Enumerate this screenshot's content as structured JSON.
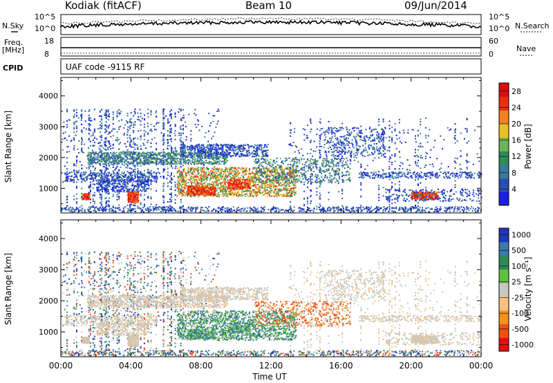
{
  "header": {
    "station": "Kodiak (fitACF)",
    "beam": "Beam 10",
    "date": "09/Jun/2014"
  },
  "panels": {
    "nsky": {
      "label": "N.Sky",
      "ticks": [
        "10^5",
        "10^0"
      ]
    },
    "nsearch": {
      "label": "N.Search",
      "ticks": [
        "10^5",
        "10^0"
      ]
    },
    "freq": {
      "label_line1": "Freq.",
      "label_line2": "[MHz]",
      "ticks": [
        "18",
        "8"
      ]
    },
    "nave": {
      "label": "Nave",
      "ticks": [
        "60",
        "0"
      ]
    },
    "cpid": {
      "label": "CPID",
      "text": "UAF code -9115 RF"
    }
  },
  "colors": {
    "power": [
      "#1a1ee0",
      "#2a4fb0",
      "#3a7a9a",
      "#2e8b57",
      "#6db35a",
      "#e8c020",
      "#f08020",
      "#e83010",
      "#d81010"
    ],
    "velocity": [
      "#e01010",
      "#f05010",
      "#f59020",
      "#f8c080",
      "#c8c8c0",
      "#60c040",
      "#2e8b57",
      "#3a7ab0",
      "#2038b8"
    ],
    "vel_palette_plot": [
      "#2e8b57",
      "#3c9a60",
      "#4aa860",
      "#c0c0b8",
      "#e0901a",
      "#f08a10",
      "#6db35a"
    ]
  },
  "chart_data": [
    {
      "type": "heatmap",
      "title": "Power",
      "xlabel": "Time UT",
      "ylabel": "Slant Range [km]",
      "x_ticks": [
        "00:00",
        "04:00",
        "08:00",
        "12:00",
        "16:00",
        "20:00",
        "00:00"
      ],
      "y_ticks": [
        "1000",
        "2000",
        "3000",
        "4000"
      ],
      "ylim": [
        200,
        4600
      ],
      "xlim_hours": [
        0,
        24
      ],
      "colorbar": {
        "label": "Power [dB]",
        "ticks": [
          "4",
          "8",
          "12",
          "16",
          "20",
          "24",
          "28"
        ],
        "range": [
          0,
          30
        ]
      },
      "regions": [
        {
          "t0": 2.0,
          "t1": 9.0,
          "r0": 1750,
          "r1": 2250,
          "level": "low-mid"
        },
        {
          "t0": 6.5,
          "t1": 11.5,
          "r0": 2000,
          "r1": 2500,
          "level": "low"
        },
        {
          "t0": 6.6,
          "t1": 13.5,
          "r0": 700,
          "r1": 1700,
          "level": "high"
        },
        {
          "t0": 1.2,
          "t1": 1.6,
          "r0": 650,
          "r1": 850,
          "level": "max"
        },
        {
          "t0": 3.8,
          "t1": 4.4,
          "r0": 550,
          "r1": 900,
          "level": "max"
        },
        {
          "t0": 20.0,
          "t1": 21.5,
          "r0": 650,
          "r1": 900,
          "level": "max"
        }
      ]
    },
    {
      "type": "heatmap",
      "title": "Velocity",
      "xlabel": "Time UT",
      "ylabel": "Slant Range [km]",
      "x_ticks": [
        "00:00",
        "04:00",
        "08:00",
        "12:00",
        "16:00",
        "20:00",
        "00:00"
      ],
      "y_ticks": [
        "1000",
        "2000",
        "3000",
        "4000"
      ],
      "ylim": [
        200,
        4600
      ],
      "xlim_hours": [
        0,
        24
      ],
      "colorbar": {
        "label": "Velocity [m s⁻¹]",
        "ticks": [
          "1000",
          "500",
          "100",
          "25",
          "-25",
          "-100",
          "-500",
          "-1000"
        ]
      },
      "regions": [
        {
          "t0": 6.6,
          "t1": 11.5,
          "r0": 700,
          "r1": 1700,
          "sign": "positive"
        },
        {
          "t0": 11.0,
          "t1": 16.5,
          "r0": 1200,
          "r1": 2000,
          "sign": "negative"
        },
        {
          "t0": 0,
          "t1": 9.0,
          "r0": 1600,
          "r1": 2300,
          "sign": "near-zero"
        },
        {
          "t0": 18,
          "t1": 24,
          "r0": 600,
          "r1": 1000,
          "sign": "near-zero"
        }
      ]
    }
  ]
}
